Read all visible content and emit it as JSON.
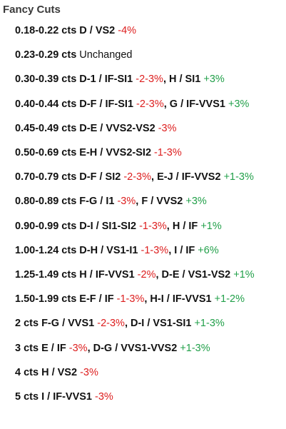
{
  "title": "Fancy Cuts",
  "rows": [
    [
      {
        "t": "0.18-0.22 cts D / VS2",
        "k": "label"
      },
      {
        "t": " "
      },
      {
        "t": "-4%",
        "k": "neg"
      }
    ],
    [
      {
        "t": "0.23-0.29 cts",
        "k": "label"
      },
      {
        "t": " "
      },
      {
        "t": "Unchanged",
        "k": "plain"
      }
    ],
    [
      {
        "t": "0.30-0.39 cts D-1 / IF-SI1",
        "k": "label"
      },
      {
        "t": " "
      },
      {
        "t": "-2-3%",
        "k": "neg"
      },
      {
        "t": ", ",
        "k": "label"
      },
      {
        "t": "H / SI1",
        "k": "label"
      },
      {
        "t": " "
      },
      {
        "t": "+3%",
        "k": "pos"
      }
    ],
    [
      {
        "t": "0.40-0.44 cts D-F / IF-SI1",
        "k": "label"
      },
      {
        "t": " "
      },
      {
        "t": "-2-3%",
        "k": "neg"
      },
      {
        "t": ", ",
        "k": "label"
      },
      {
        "t": "G / IF-VVS1",
        "k": "label"
      },
      {
        "t": " "
      },
      {
        "t": "+3%",
        "k": "pos"
      }
    ],
    [
      {
        "t": "0.45-0.49 cts D-E / VVS2-VS2",
        "k": "label"
      },
      {
        "t": " "
      },
      {
        "t": "-3%",
        "k": "neg"
      }
    ],
    [
      {
        "t": "0.50-0.69 cts E-H / VVS2-SI2",
        "k": "label"
      },
      {
        "t": " "
      },
      {
        "t": "-1-3%",
        "k": "neg"
      }
    ],
    [
      {
        "t": "0.70-0.79 cts D-F / SI2",
        "k": "label"
      },
      {
        "t": " "
      },
      {
        "t": "-2-3%",
        "k": "neg"
      },
      {
        "t": ", ",
        "k": "label"
      },
      {
        "t": "E-J / IF-VVS2",
        "k": "label"
      },
      {
        "t": " "
      },
      {
        "t": "+1-3%",
        "k": "pos"
      }
    ],
    [
      {
        "t": "0.80-0.89 cts F-G / I1",
        "k": "label"
      },
      {
        "t": " "
      },
      {
        "t": "-3%",
        "k": "neg"
      },
      {
        "t": ", ",
        "k": "label"
      },
      {
        "t": "F / VVS2",
        "k": "label"
      },
      {
        "t": " "
      },
      {
        "t": "+3%",
        "k": "pos"
      }
    ],
    [
      {
        "t": "0.90-0.99 cts D-I / SI1-SI2",
        "k": "label"
      },
      {
        "t": " "
      },
      {
        "t": "-1-3%",
        "k": "neg"
      },
      {
        "t": ", ",
        "k": "label"
      },
      {
        "t": "H / IF",
        "k": "label"
      },
      {
        "t": " "
      },
      {
        "t": "+1%",
        "k": "pos"
      }
    ],
    [
      {
        "t": "1.00-1.24 cts D-H / VS1-I1",
        "k": "label"
      },
      {
        "t": " "
      },
      {
        "t": "-1-3%",
        "k": "neg"
      },
      {
        "t": ", ",
        "k": "label"
      },
      {
        "t": "I / IF",
        "k": "label"
      },
      {
        "t": " "
      },
      {
        "t": "+6%",
        "k": "pos"
      }
    ],
    [
      {
        "t": "1.25-1.49 cts H / IF-VVS1",
        "k": "label"
      },
      {
        "t": " "
      },
      {
        "t": "-2%",
        "k": "neg"
      },
      {
        "t": ", ",
        "k": "label"
      },
      {
        "t": "D-E / VS1-VS2",
        "k": "label"
      },
      {
        "t": " "
      },
      {
        "t": "+1%",
        "k": "pos"
      }
    ],
    [
      {
        "t": "1.50-1.99 cts E-F / IF",
        "k": "label"
      },
      {
        "t": " "
      },
      {
        "t": "-1-3%",
        "k": "neg"
      },
      {
        "t": ", ",
        "k": "label"
      },
      {
        "t": "H-I / IF-VVS1",
        "k": "label"
      },
      {
        "t": " "
      },
      {
        "t": "+1-2%",
        "k": "pos"
      }
    ],
    [
      {
        "t": "2 cts F-G / VVS1",
        "k": "label"
      },
      {
        "t": " "
      },
      {
        "t": "-2-3%",
        "k": "neg"
      },
      {
        "t": ", ",
        "k": "label"
      },
      {
        "t": "D-I / VS1-SI1",
        "k": "label"
      },
      {
        "t": " "
      },
      {
        "t": "+1-3%",
        "k": "pos"
      }
    ],
    [
      {
        "t": "3 cts E / IF",
        "k": "label"
      },
      {
        "t": " "
      },
      {
        "t": "-3%",
        "k": "neg"
      },
      {
        "t": ", ",
        "k": "label"
      },
      {
        "t": "D-G / VVS1-VVS2",
        "k": "label"
      },
      {
        "t": " "
      },
      {
        "t": "+1-3%",
        "k": "pos"
      }
    ],
    [
      {
        "t": "4 cts H / VS2",
        "k": "label"
      },
      {
        "t": " "
      },
      {
        "t": "-3%",
        "k": "neg"
      }
    ],
    [
      {
        "t": "5 cts I / IF-VVS1",
        "k": "label"
      },
      {
        "t": " "
      },
      {
        "t": "-3%",
        "k": "neg"
      }
    ]
  ],
  "colors": {
    "negative": "#dd1e1e",
    "positive": "#22a04a",
    "title": "#3a3a3a",
    "text": "#111111"
  }
}
